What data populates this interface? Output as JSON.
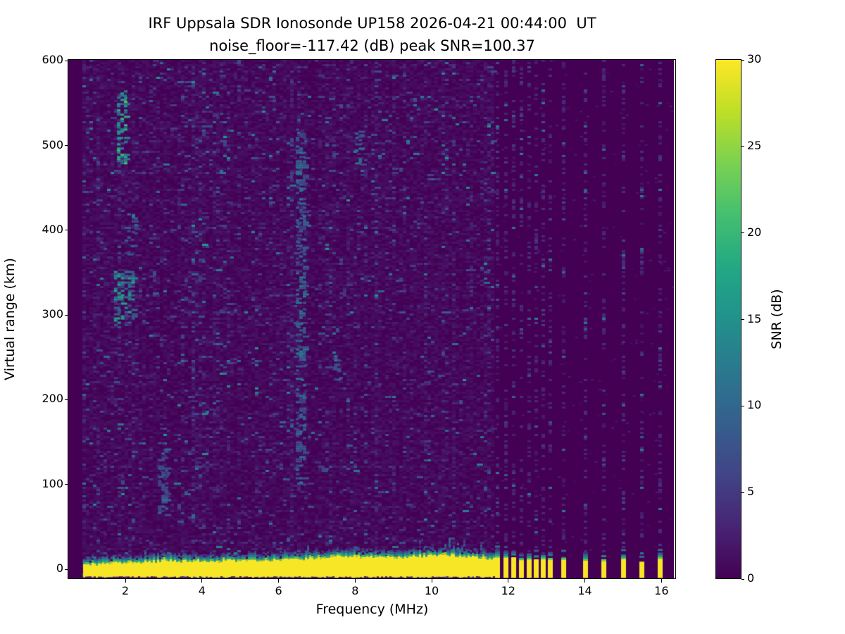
{
  "figure": {
    "title_line1": "IRF Uppsala SDR Ionosonde UP158 2026-04-21 00:44:00  UT",
    "title_line2": "noise_floor=-117.42 (dB) peak SNR=100.37"
  },
  "chart_data": {
    "type": "heatmap",
    "title": "IRF Uppsala SDR Ionosonde UP158 2026-04-21 00:44:00  UT",
    "subtitle": "noise_floor=-117.42 (dB) peak SNR=100.37",
    "xlabel": "Frequency (MHz)",
    "ylabel": "Virtual range (km)",
    "colorbar_label": "SNR (dB)",
    "x_ticks": [
      2,
      4,
      6,
      8,
      10,
      12,
      14,
      16
    ],
    "y_ticks": [
      0,
      100,
      200,
      300,
      400,
      500,
      600
    ],
    "colorbar_ticks": [
      0,
      5,
      10,
      15,
      20,
      25,
      30
    ],
    "xlim": [
      0.51,
      16.38
    ],
    "ylim": [
      -11.6,
      601
    ],
    "clim": [
      0,
      30
    ],
    "noise_floor_db": -117.42,
    "peak_snr_db": 100.37,
    "colormap": "viridis",
    "colormap_stops": [
      {
        "t": 0.0,
        "color": "#440154"
      },
      {
        "t": 0.1,
        "color": "#482475"
      },
      {
        "t": 0.2,
        "color": "#414487"
      },
      {
        "t": 0.3,
        "color": "#355f8d"
      },
      {
        "t": 0.4,
        "color": "#2a788e"
      },
      {
        "t": 0.5,
        "color": "#21918c"
      },
      {
        "t": 0.6,
        "color": "#22a884"
      },
      {
        "t": 0.7,
        "color": "#44bf70"
      },
      {
        "t": 0.8,
        "color": "#7ad151"
      },
      {
        "t": 0.9,
        "color": "#bddf26"
      },
      {
        "t": 1.0,
        "color": "#fde725"
      }
    ],
    "content": {
      "seed": 20260421,
      "no_data_below_mhz": 0.9,
      "continuous_sweep_mhz": [
        0.9,
        11.66
      ],
      "ground_echo": {
        "km_bottom": -9,
        "km_top_start": 5.5,
        "km_top_ramp": 4.5,
        "bumps": [
          {
            "f": 7.7,
            "sigma": 0.9,
            "amp": 5.0
          },
          {
            "f": 10.3,
            "sigma": 0.95,
            "amp": 6.5
          }
        ]
      },
      "stripes": [
        {
          "f": 11.72,
          "top_km": 15
        },
        {
          "f": 11.93,
          "top_km": 13
        },
        {
          "f": 12.14,
          "top_km": 14
        },
        {
          "f": 12.34,
          "top_km": 12
        },
        {
          "f": 12.54,
          "top_km": 13
        },
        {
          "f": 12.73,
          "top_km": 12
        },
        {
          "f": 12.92,
          "top_km": 11
        },
        {
          "f": 13.1,
          "top_km": 12
        },
        {
          "f": 13.45,
          "top_km": 11
        },
        {
          "f": 14.01,
          "top_km": 12
        },
        {
          "f": 14.5,
          "top_km": 10
        },
        {
          "f": 15.01,
          "top_km": 11
        },
        {
          "f": 15.49,
          "top_km": 9
        },
        {
          "f": 15.97,
          "top_km": 12
        }
      ],
      "hotspots": [
        {
          "f": [
            1.78,
            1.97
          ],
          "km": [
            480,
            565
          ],
          "density": 0.55,
          "snr": [
            8,
            22
          ]
        },
        {
          "f": [
            1.7,
            2.2
          ],
          "km": [
            290,
            352
          ],
          "density": 0.45,
          "snr": [
            6,
            18
          ]
        },
        {
          "f": [
            6.45,
            6.68
          ],
          "km": [
            100,
            520
          ],
          "density": 0.38,
          "snr": [
            5,
            12
          ]
        },
        {
          "f": [
            2.85,
            3.08
          ],
          "km": [
            60,
            150
          ],
          "density": 0.33,
          "snr": [
            5,
            11
          ]
        },
        {
          "f": [
            2.05,
            2.3
          ],
          "km": [
            370,
            420
          ],
          "density": 0.3,
          "snr": [
            5,
            10
          ]
        },
        {
          "f": [
            8.0,
            8.15
          ],
          "km": [
            480,
            520
          ],
          "density": 0.35,
          "snr": [
            6,
            12
          ]
        },
        {
          "f": [
            7.45,
            7.6
          ],
          "km": [
            225,
            255
          ],
          "density": 0.35,
          "snr": [
            6,
            13
          ]
        }
      ]
    }
  }
}
